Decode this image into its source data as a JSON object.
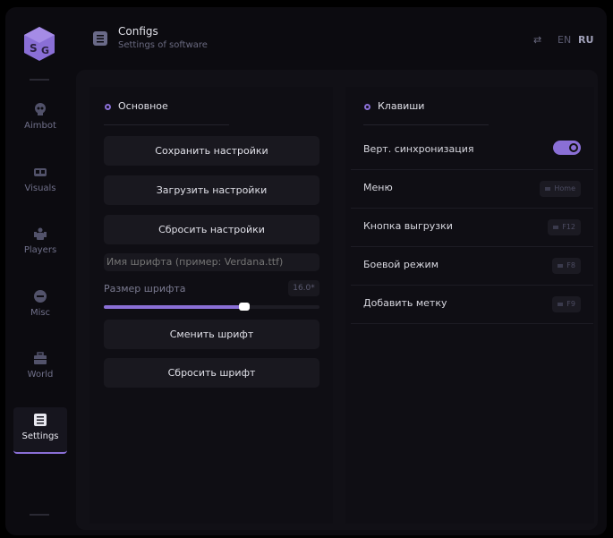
{
  "header": {
    "title": "Configs",
    "subtitle": "Settings of software",
    "lang_en": "EN",
    "lang_ru": "RU"
  },
  "sidebar": {
    "items": [
      {
        "label": "Aimbot",
        "icon": "skull-icon"
      },
      {
        "label": "Visuals",
        "icon": "vr-glasses-icon"
      },
      {
        "label": "Players",
        "icon": "players-icon"
      },
      {
        "label": "Misc",
        "icon": "chat-icon"
      },
      {
        "label": "World",
        "icon": "briefcase-icon"
      },
      {
        "label": "Settings",
        "icon": "list-icon",
        "active": true
      }
    ]
  },
  "main": {
    "title": "Основное",
    "save": "Сохранить настройки",
    "load": "Загрузить настройки",
    "reset": "Сбросить настройки",
    "font_placeholder": "Имя шрифта (пример: Verdana.ttf)",
    "font_size_label": "Размер шрифта",
    "font_size_value": "16.0*",
    "font_size_fraction": 0.65,
    "change_font": "Сменить шрифт",
    "reset_font": "Сбросить шрифт"
  },
  "keys": {
    "title": "Клавиши",
    "rows": [
      {
        "label": "Верт. синхронизация",
        "toggle": true
      },
      {
        "label": "Меню",
        "key": "Home"
      },
      {
        "label": "Кнопка выгрузки",
        "key": "F12"
      },
      {
        "label": "Боевой режим",
        "key": "F8"
      },
      {
        "label": "Добавить метку",
        "key": "F9"
      }
    ]
  },
  "colors": {
    "accent": "#8a6fd6",
    "bg": "#0c0b10"
  }
}
